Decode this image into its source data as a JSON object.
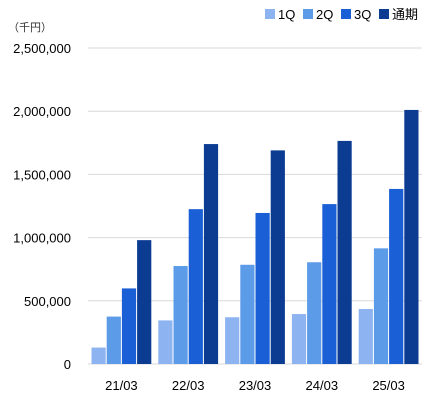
{
  "chart_data": {
    "type": "bar",
    "unit_label": "（千円）",
    "categories": [
      "21/03",
      "22/03",
      "23/03",
      "24/03",
      "25/03"
    ],
    "series": [
      {
        "name": "1Q",
        "color": "#8db4f0",
        "values": [
          130000,
          345000,
          370000,
          395000,
          435000
        ]
      },
      {
        "name": "2Q",
        "color": "#5b9be8",
        "values": [
          375000,
          775000,
          785000,
          805000,
          915000
        ]
      },
      {
        "name": "3Q",
        "color": "#1a5fd6",
        "values": [
          598000,
          1225000,
          1195000,
          1265000,
          1385000
        ]
      },
      {
        "name": "通期",
        "color": "#0b3c91",
        "values": [
          980000,
          1740000,
          1690000,
          1765000,
          2010000
        ]
      }
    ],
    "ylim": [
      0,
      2500000
    ],
    "yticks": [
      0,
      500000,
      1000000,
      1500000,
      2000000,
      2500000
    ],
    "ytick_labels": [
      "0",
      "500,000",
      "1,000,000",
      "1,500,000",
      "2,000,000",
      "2,500,000"
    ],
    "grid": true,
    "legend_position": "top-right"
  }
}
